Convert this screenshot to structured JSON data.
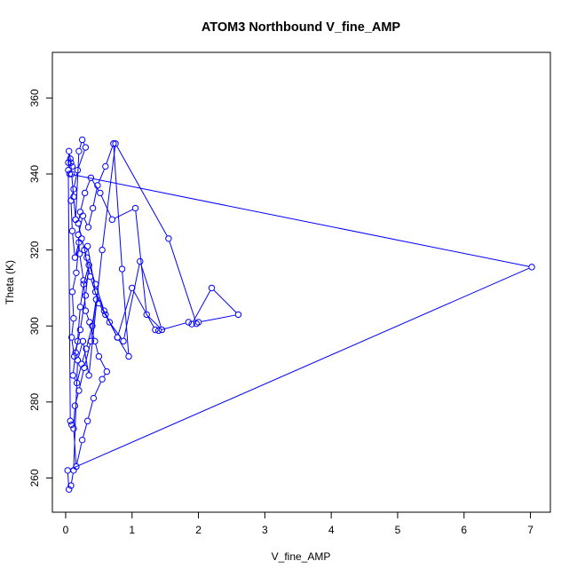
{
  "chart_data": {
    "type": "line",
    "title": "ATOM3 Northbound V_fine_AMP",
    "xlabel": "V_fine_AMP",
    "ylabel": "Theta (K)",
    "xlim": [
      -0.2,
      7.3
    ],
    "ylim": [
      251,
      372
    ],
    "x_ticks": [
      0,
      1,
      2,
      3,
      4,
      5,
      6,
      7
    ],
    "y_ticks": [
      260,
      280,
      300,
      320,
      340,
      360
    ],
    "series_color": "#0000FF",
    "markers": "open-circle",
    "series": [
      {
        "x": [
          0.04,
          0.07,
          0.09,
          0.12,
          0.15,
          0.2,
          0.25,
          0.3,
          0.18,
          0.12,
          0.08,
          0.1,
          0.14,
          0.2,
          0.16,
          0.1,
          0.12,
          0.09,
          0.13,
          0.18,
          0.22,
          0.27,
          0.35,
          0.3,
          0.22,
          0.15,
          0.11,
          0.17,
          0.24,
          0.31,
          0.4,
          0.46,
          0.38,
          0.28,
          0.2,
          0.14,
          0.12,
          0.16,
          0.25,
          0.33,
          0.42,
          0.55,
          0.62,
          0.5,
          0.44,
          0.36,
          0.3,
          0.27,
          0.21,
          0.19,
          0.26,
          0.34,
          0.41,
          0.48,
          0.6,
          0.72,
          0.85,
          0.95,
          0.78,
          0.58,
          0.45,
          0.32,
          0.24,
          0.19,
          0.22,
          0.29,
          0.38,
          0.52,
          0.7,
          1.05,
          1.22,
          1.45,
          1.12,
          0.87,
          0.66,
          0.5,
          0.37,
          0.28,
          0.33,
          0.45,
          0.6,
          0.78,
          1.0,
          1.35,
          1.4,
          1.85,
          1.9,
          2.2,
          2.6,
          2.0,
          1.97,
          1.55,
          0.75,
          0.55,
          0.35,
          0.26,
          0.18,
          0.12,
          0.08,
          0.05,
          0.03,
          7.02,
          0.06,
          0.1,
          0.08,
          0.05,
          0.04,
          0.07,
          0.09
        ],
        "y": [
          343,
          344,
          340,
          334,
          328,
          346,
          349,
          347,
          341,
          336,
          333,
          325,
          318,
          322,
          314,
          309,
          302,
          297,
          292,
          296,
          305,
          311,
          316,
          308,
          299,
          293,
          287,
          285,
          290,
          294,
          300,
          307,
          296,
          289,
          283,
          279,
          273,
          263,
          270,
          275,
          281,
          286,
          288,
          292,
          296,
          301,
          304,
          312,
          319,
          324,
          329,
          326,
          331,
          337,
          342,
          348,
          315,
          292,
          297,
          304,
          311,
          318,
          323,
          327,
          330,
          335,
          339,
          335,
          328,
          331,
          303,
          299,
          317,
          296,
          301,
          306,
          313,
          320,
          321,
          309,
          303,
          297,
          310,
          299,
          298.8,
          301,
          300.5,
          310,
          303,
          301,
          300.6,
          323,
          348,
          320,
          287,
          296,
          291,
          262,
          258,
          257,
          262,
          315.5,
          340,
          342,
          343,
          346,
          341,
          275,
          274
        ]
      }
    ]
  }
}
